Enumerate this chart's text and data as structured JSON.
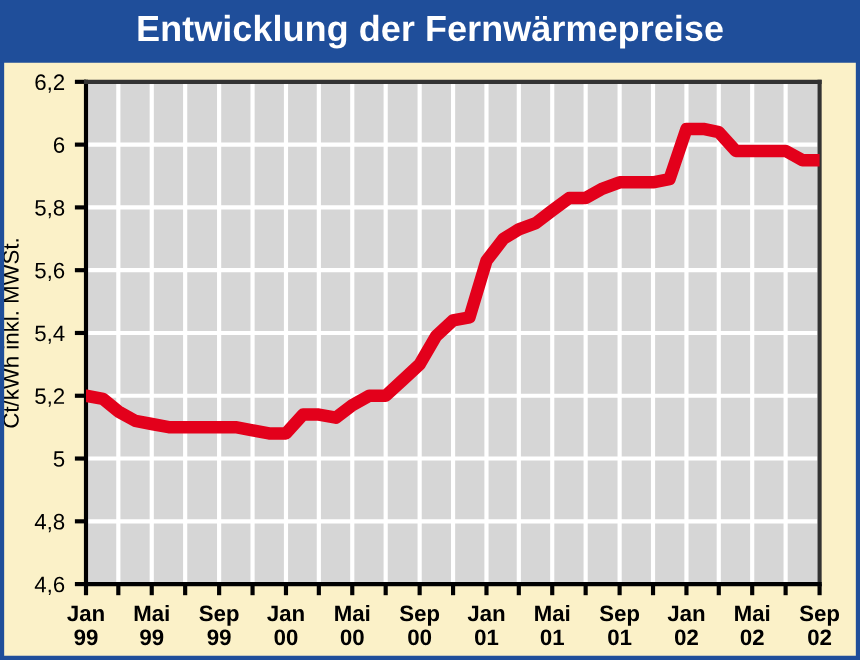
{
  "chart_data": {
    "type": "line",
    "title": "Entwicklung der Fernwärmepreise",
    "ylabel": "Ct/kWh inkl. MWSt.",
    "x": [
      "1999-01",
      "1999-02",
      "1999-03",
      "1999-04",
      "1999-05",
      "1999-06",
      "1999-07",
      "1999-08",
      "1999-09",
      "1999-10",
      "1999-11",
      "1999-12",
      "2000-01",
      "2000-02",
      "2000-03",
      "2000-04",
      "2000-05",
      "2000-06",
      "2000-07",
      "2000-08",
      "2000-09",
      "2000-10",
      "2000-11",
      "2000-12",
      "2001-01",
      "2001-02",
      "2001-03",
      "2001-04",
      "2001-05",
      "2001-06",
      "2001-07",
      "2001-08",
      "2001-09",
      "2001-10",
      "2001-11",
      "2001-12",
      "2002-01",
      "2002-02",
      "2002-03",
      "2002-04",
      "2002-05",
      "2002-06",
      "2002-07",
      "2002-08",
      "2002-09"
    ],
    "series": [
      {
        "color": "#e3001b",
        "values": [
          5.2,
          5.19,
          5.15,
          5.12,
          5.11,
          5.1,
          5.1,
          5.1,
          5.1,
          5.1,
          5.09,
          5.08,
          5.08,
          5.14,
          5.14,
          5.13,
          5.17,
          5.2,
          5.2,
          5.25,
          5.3,
          5.39,
          5.44,
          5.45,
          5.63,
          5.7,
          5.73,
          5.75,
          5.79,
          5.83,
          5.83,
          5.86,
          5.88,
          5.88,
          5.88,
          5.89,
          6.05,
          6.05,
          6.04,
          5.98,
          5.98,
          5.98,
          5.98,
          5.95,
          5.95
        ]
      }
    ],
    "xlim": [
      "1999-01",
      "2002-09"
    ],
    "xticks": [
      {
        "value": "1999-01",
        "label": "Jan 99"
      },
      {
        "value": "1999-03",
        "label": null
      },
      {
        "value": "1999-05",
        "label": "Mai 99"
      },
      {
        "value": "1999-07",
        "label": null
      },
      {
        "value": "1999-09",
        "label": "Sep 99"
      },
      {
        "value": "1999-11",
        "label": null
      },
      {
        "value": "2000-01",
        "label": "Jan 00"
      },
      {
        "value": "2000-03",
        "label": null
      },
      {
        "value": "2000-05",
        "label": "Mai 00"
      },
      {
        "value": "2000-07",
        "label": null
      },
      {
        "value": "2000-09",
        "label": "Sep 00"
      },
      {
        "value": "2000-11",
        "label": null
      },
      {
        "value": "2001-01",
        "label": "Jan 01"
      },
      {
        "value": "2001-03",
        "label": null
      },
      {
        "value": "2001-05",
        "label": "Mai 01"
      },
      {
        "value": "2001-07",
        "label": null
      },
      {
        "value": "2001-09",
        "label": "Sep 01"
      },
      {
        "value": "2001-11",
        "label": null
      },
      {
        "value": "2002-01",
        "label": "Jan 02"
      },
      {
        "value": "2002-03",
        "label": null
      },
      {
        "value": "2002-05",
        "label": "Mai 02"
      },
      {
        "value": "2002-07",
        "label": null
      },
      {
        "value": "2002-09",
        "label": "Sep 02"
      }
    ],
    "ylim": [
      4.6,
      6.2
    ],
    "yticks": [
      {
        "value": 4.6,
        "label": "4,6"
      },
      {
        "value": 4.8,
        "label": "4,8"
      },
      5,
      {
        "value": 5.2,
        "label": "5,2"
      },
      {
        "value": 5.4,
        "label": "5,4"
      },
      {
        "value": 5.6,
        "label": "5,6"
      },
      {
        "value": 5.8,
        "label": "5,8"
      },
      6,
      {
        "value": 6.2,
        "label": "6,2"
      }
    ],
    "grid": true,
    "marker": "none",
    "line_style": "solid"
  }
}
